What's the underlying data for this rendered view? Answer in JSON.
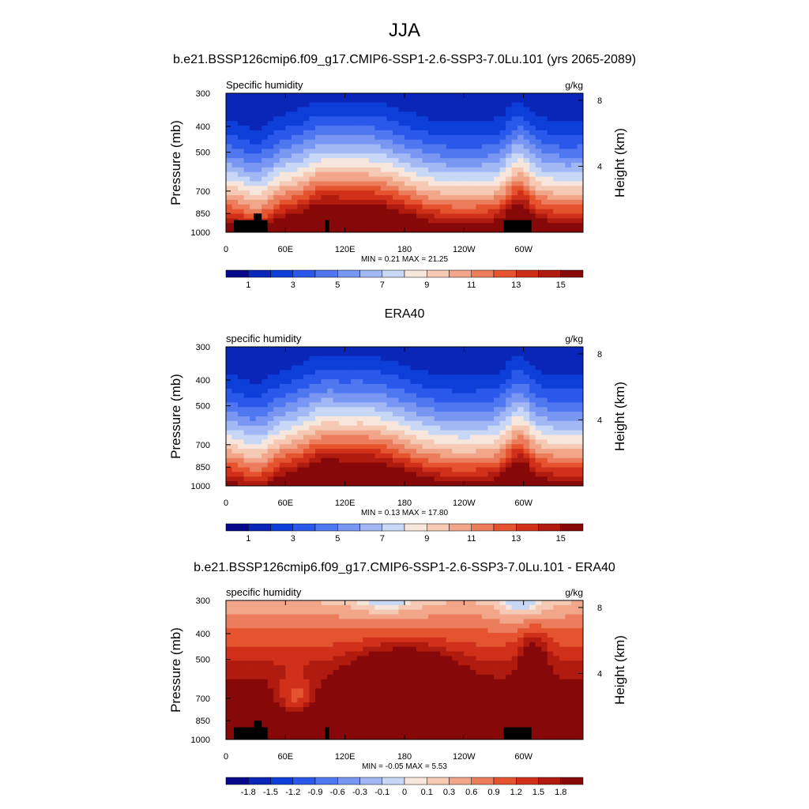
{
  "page_title": "JJA",
  "chart_data": [
    {
      "type": "heatmap",
      "title": "b.e21.BSSP126cmip6.f09_g17.CMIP6-SSP1-2.6-SSP3-7.0Lu.101 (yrs 2065-2089)",
      "left_label": "Specific humidity",
      "right_label": "g/kg",
      "ylabel": "Pressure (mb)",
      "ylabel_right": "Height (km)",
      "x_ticks": [
        "0",
        "60E",
        "120E",
        "180",
        "120W",
        "60W"
      ],
      "y_ticks": [
        "300",
        "400",
        "500",
        "700",
        "850",
        "1000"
      ],
      "y_ticks_right": [
        "8",
        "4"
      ],
      "stats": "MIN =   0.21  MAX =  21.25",
      "min": 0.21,
      "max": 21.25,
      "colorbar_labels": [
        "1",
        "3",
        "5",
        "7",
        "9",
        "11",
        "13",
        "15"
      ],
      "colorbar_levels": [
        0,
        1,
        2,
        3,
        4,
        5,
        6,
        7,
        8,
        9,
        10,
        11,
        12,
        13,
        14,
        15
      ],
      "colors": [
        "#08088c",
        "#0a26b8",
        "#0d3fd8",
        "#2a58ea",
        "#4f77f0",
        "#7896f2",
        "#a2b8f4",
        "#c8d7f6",
        "#f7e6dc",
        "#f5c9b4",
        "#f1a68a",
        "#ec7d5c",
        "#e5532f",
        "#d0301a",
        "#b01b0f",
        "#870808"
      ],
      "terrain": true
    },
    {
      "type": "heatmap",
      "title": "ERA40",
      "left_label": "specific humidity",
      "right_label": "g/kg",
      "ylabel": "Pressure (mb)",
      "ylabel_right": "Height (km)",
      "x_ticks": [
        "0",
        "60E",
        "120E",
        "180",
        "120W",
        "60W"
      ],
      "y_ticks": [
        "300",
        "400",
        "500",
        "700",
        "850",
        "1000"
      ],
      "y_ticks_right": [
        "8",
        "4"
      ],
      "stats": "MIN =   0.13  MAX =  17.80",
      "min": 0.13,
      "max": 17.8,
      "colorbar_labels": [
        "1",
        "3",
        "5",
        "7",
        "9",
        "11",
        "13",
        "15"
      ],
      "colorbar_levels": [
        0,
        1,
        2,
        3,
        4,
        5,
        6,
        7,
        8,
        9,
        10,
        11,
        12,
        13,
        14,
        15
      ],
      "colors": [
        "#08088c",
        "#0a26b8",
        "#0d3fd8",
        "#2a58ea",
        "#4f77f0",
        "#7896f2",
        "#a2b8f4",
        "#c8d7f6",
        "#f7e6dc",
        "#f5c9b4",
        "#f1a68a",
        "#ec7d5c",
        "#e5532f",
        "#d0301a",
        "#b01b0f",
        "#870808"
      ],
      "terrain": false
    },
    {
      "type": "heatmap",
      "title": "b.e21.BSSP126cmip6.f09_g17.CMIP6-SSP1-2.6-SSP3-7.0Lu.101 - ERA40",
      "left_label": "specific humidity",
      "right_label": "g/kg",
      "ylabel": "Pressure (mb)",
      "ylabel_right": "Height (km)",
      "x_ticks": [
        "0",
        "60E",
        "120E",
        "180",
        "120W",
        "60W"
      ],
      "y_ticks": [
        "300",
        "400",
        "500",
        "700",
        "850",
        "1000"
      ],
      "y_ticks_right": [
        "8",
        "4"
      ],
      "stats": "MIN =  -0.05  MAX =    5.53",
      "min": -0.05,
      "max": 5.53,
      "colorbar_labels": [
        "-1.8",
        "-1.5",
        "-1.2",
        "-0.9",
        "-0.6",
        "-0.3",
        "-0.1",
        "0",
        "0.1",
        "0.3",
        "0.6",
        "0.9",
        "1.2",
        "1.5",
        "1.8"
      ],
      "colorbar_levels": [
        -1.8,
        -1.5,
        -1.2,
        -0.9,
        -0.6,
        -0.3,
        -0.1,
        0,
        0.1,
        0.3,
        0.6,
        0.9,
        1.2,
        1.5,
        1.8
      ],
      "colors": [
        "#08088c",
        "#0a26b8",
        "#0d3fd8",
        "#2a58ea",
        "#4f77f0",
        "#7896f2",
        "#a2b8f4",
        "#c8d7f6",
        "#f7e6dc",
        "#f5c9b4",
        "#f1a68a",
        "#ec7d5c",
        "#e5532f",
        "#d0301a",
        "#b01b0f",
        "#870808"
      ],
      "terrain": true
    }
  ]
}
